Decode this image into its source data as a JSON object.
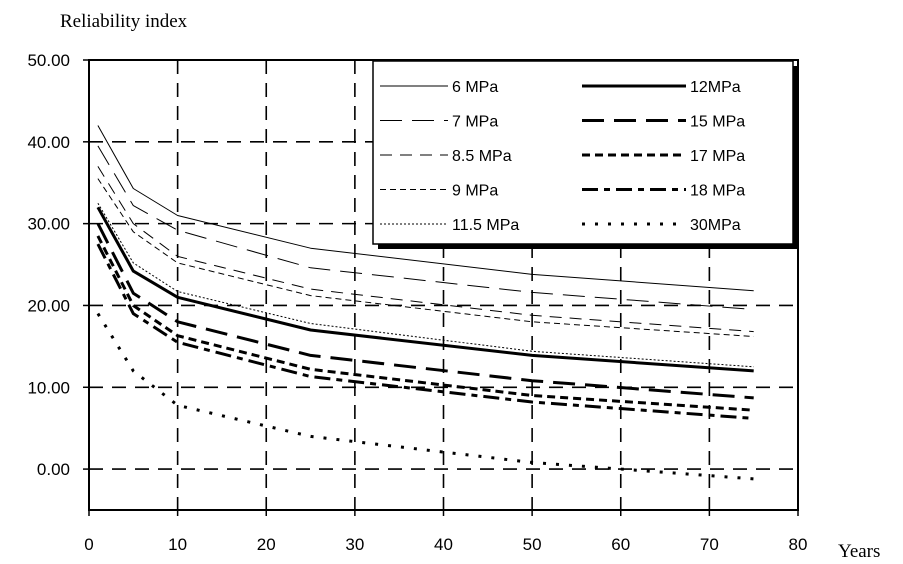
{
  "chart_data": {
    "type": "line",
    "title": "",
    "ylabel": "Reliability index",
    "xlabel": "Years",
    "xlim": [
      0,
      80
    ],
    "ylim": [
      -5,
      50
    ],
    "x_ticks": [
      0,
      10,
      20,
      30,
      40,
      50,
      60,
      70,
      80
    ],
    "y_ticks": [
      0,
      10,
      20,
      30,
      40,
      50
    ],
    "x_tick_labels": [
      "0",
      "10",
      "20",
      "30",
      "40",
      "50",
      "60",
      "70",
      "80"
    ],
    "y_tick_labels": [
      "0.00",
      "10.00",
      "20.00",
      "30.00",
      "40.00",
      "50.00"
    ],
    "grid": true,
    "legend_position": "top-right",
    "x": [
      1,
      5,
      10,
      25,
      50,
      75
    ],
    "series": [
      {
        "name": "6 MPa",
        "values": [
          42.0,
          34.3,
          31.0,
          27.0,
          23.8,
          21.8
        ]
      },
      {
        "name": "7 MPa",
        "values": [
          39.5,
          32.2,
          29.2,
          24.6,
          21.6,
          19.5
        ]
      },
      {
        "name": "8.5 MPa",
        "values": [
          37.0,
          30.0,
          26.0,
          22.0,
          18.8,
          16.8
        ]
      },
      {
        "name": "9 MPa",
        "values": [
          35.5,
          29.0,
          25.2,
          21.2,
          18.0,
          16.2
        ]
      },
      {
        "name": "11.5 MPa",
        "values": [
          32.5,
          25.2,
          21.7,
          17.8,
          14.4,
          12.5
        ]
      },
      {
        "name": "12MPa",
        "values": [
          32.0,
          24.2,
          21.0,
          17.0,
          13.9,
          12.0
        ]
      },
      {
        "name": "15 MPa",
        "values": [
          30.0,
          21.5,
          18.0,
          13.9,
          10.8,
          8.7
        ]
      },
      {
        "name": "17 MPa",
        "values": [
          28.5,
          20.0,
          16.3,
          12.2,
          9.0,
          7.2
        ]
      },
      {
        "name": "18 MPa",
        "values": [
          27.5,
          19.0,
          15.5,
          11.3,
          8.2,
          6.2
        ]
      },
      {
        "name": "30MPa",
        "values": [
          19.0,
          12.0,
          7.8,
          4.0,
          0.8,
          -1.2
        ]
      }
    ]
  },
  "styles": {
    "6 MPa": {
      "width": 1,
      "dash": ""
    },
    "7 MPa": {
      "width": 1,
      "dash": "22 10"
    },
    "8.5 MPa": {
      "width": 1,
      "dash": "12 8"
    },
    "9 MPa": {
      "width": 1,
      "dash": "6 4"
    },
    "11.5 MPa": {
      "width": 1,
      "dash": "2 2"
    },
    "12MPa": {
      "width": 3,
      "dash": ""
    },
    "15 MPa": {
      "width": 3,
      "dash": "22 10"
    },
    "17 MPa": {
      "width": 3,
      "dash": "8 5"
    },
    "18 MPa": {
      "width": 3,
      "dash": "16 6 6 6"
    },
    "30MPa": {
      "width": 3,
      "dash": "3 10"
    }
  },
  "colors": {
    "line": "#000000",
    "grid": "#000000",
    "background": "#ffffff"
  }
}
